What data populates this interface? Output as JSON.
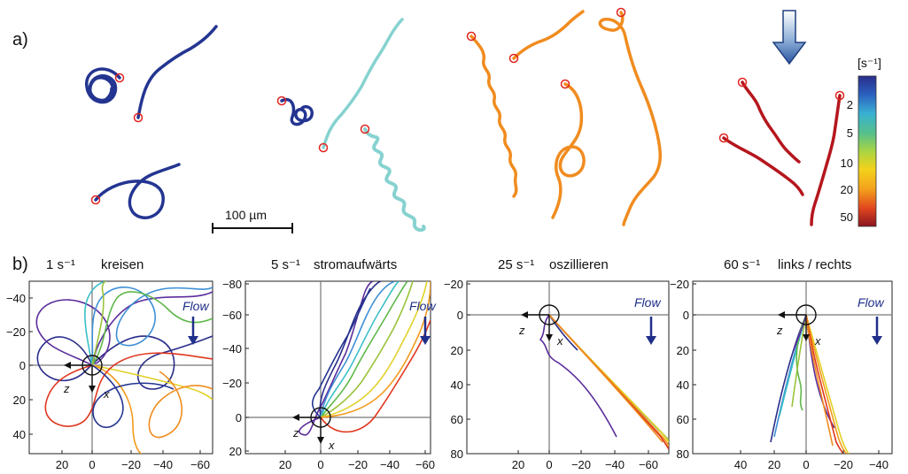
{
  "figure": {
    "part_a_label": "a)",
    "part_b_label": "b)",
    "scale_bar_label": "100 µm"
  },
  "colorbar": {
    "unit_label": "[s⁻¹]",
    "ticks": [
      "2",
      "5",
      "10",
      "20",
      "50"
    ],
    "colors": [
      "#2a2d8a",
      "#2b73c4",
      "#3bbfc7",
      "#5fc36b",
      "#c7d83a",
      "#f6c21a",
      "#f38a1c",
      "#d63a1e",
      "#8a1420"
    ]
  },
  "series_colors": {
    "dark_blue": "#243591",
    "cyan": "#86d2d0",
    "orange": "#f08c1f",
    "dark_red": "#b5161d",
    "start_marker": "#e0241f"
  },
  "panels": [
    {
      "rate": "1",
      "unit": "s⁻¹",
      "mode": "kreisen",
      "flow_label": "Flow",
      "x_ticks": [
        "20",
        "0",
        "−20",
        "−40",
        "−60"
      ],
      "y_ticks": [
        "−40",
        "−20",
        "0",
        "20",
        "40"
      ],
      "z_label": "z",
      "x_label": "x"
    },
    {
      "rate": "5",
      "unit": "s⁻¹",
      "mode": "stromaufwärts",
      "flow_label": "Flow",
      "x_ticks": [
        "20",
        "0",
        "−20",
        "−40",
        "−60"
      ],
      "y_ticks": [
        "−80",
        "−60",
        "−40",
        "−20",
        "0",
        "20"
      ],
      "z_label": "z",
      "x_label": "x"
    },
    {
      "rate": "25",
      "unit": "s⁻¹",
      "mode": "oszillieren",
      "flow_label": "Flow",
      "x_ticks": [
        "20",
        "0",
        "−20",
        "−40",
        "−60"
      ],
      "y_ticks": [
        "−20",
        "0",
        "20",
        "40",
        "60",
        "80"
      ],
      "z_label": "z",
      "x_label": "x"
    },
    {
      "rate": "60",
      "unit": "s⁻¹",
      "mode": "links / rechts",
      "flow_label": "Flow",
      "x_ticks": [
        "40",
        "20",
        "0",
        "−20",
        "−40"
      ],
      "y_ticks": [
        "−20",
        "0",
        "20",
        "40",
        "60",
        "80"
      ],
      "z_label": "z",
      "x_label": "x"
    }
  ]
}
